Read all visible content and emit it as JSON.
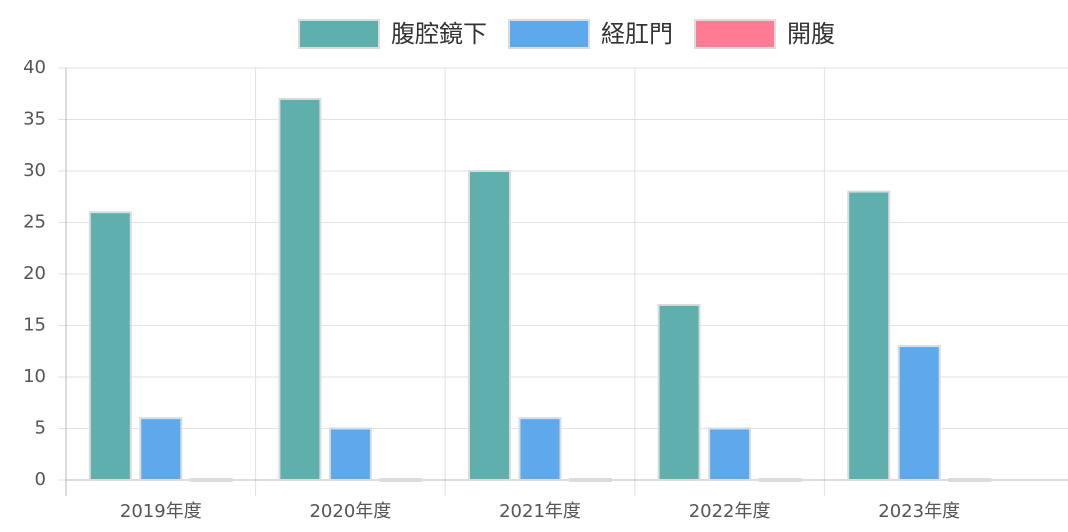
{
  "chart_data": {
    "type": "bar",
    "categories": [
      "2019年度",
      "2020年度",
      "2021年度",
      "2022年度",
      "2023年度"
    ],
    "series": [
      {
        "name": "腹腔鏡下",
        "color": "#5fb0ad",
        "values": [
          26,
          37,
          30,
          17,
          28
        ]
      },
      {
        "name": "経肛門",
        "color": "#5ea8ec",
        "values": [
          6,
          5,
          6,
          5,
          13
        ]
      },
      {
        "name": "開腹",
        "color": "#ff7b93",
        "values": [
          0,
          0,
          0,
          0,
          0
        ]
      }
    ],
    "ylim": [
      0,
      40
    ],
    "yticks": [
      0,
      5,
      10,
      15,
      20,
      25,
      30,
      35,
      40
    ],
    "grid": true,
    "legend": "top"
  }
}
